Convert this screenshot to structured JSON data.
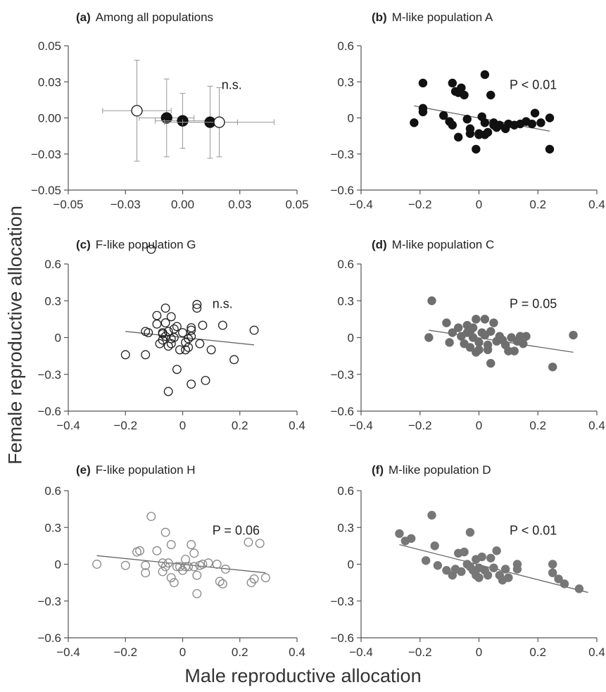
{
  "figure": {
    "ylabel": "Female reproductive allocation",
    "xlabel": "Male reproductive allocation"
  },
  "chart_data": [
    {
      "type": "scatter",
      "panel_letter": "(a)",
      "title": "Among all populations",
      "annotation": "n.s.",
      "xlim": [
        -0.05,
        0.05
      ],
      "ylim": [
        -0.05,
        0.05
      ],
      "xticks": [
        "-0.05",
        "-0.03",
        "0.00",
        "0.03",
        "0.05"
      ],
      "xtick_values": [
        -0.05,
        -0.025,
        0,
        0.025,
        0.05
      ],
      "yticks": [
        "0.05",
        "0.03",
        "0.00",
        "-0.03",
        "-0.05"
      ],
      "ytick_values": [
        0.05,
        0.025,
        0,
        -0.025,
        -0.05
      ],
      "grid": false,
      "points": [
        {
          "x": -0.02,
          "y": 0.005,
          "xerr": 0.015,
          "yerr": 0.035,
          "filled": false
        },
        {
          "x": -0.007,
          "y": 0.0,
          "xerr": 0.012,
          "yerr": 0.027,
          "filled": true
        },
        {
          "x": 0.0,
          "y": -0.002,
          "xerr": 0.012,
          "yerr": 0.019,
          "filled": true
        },
        {
          "x": 0.012,
          "y": -0.003,
          "xerr": 0.012,
          "yerr": 0.025,
          "filled": true
        },
        {
          "x": 0.016,
          "y": -0.003,
          "xerr": 0.024,
          "yerr": 0.024,
          "filled": false
        }
      ]
    },
    {
      "type": "scatter",
      "panel_letter": "(b)",
      "title": "M-like population A",
      "annotation": "P < 0.01",
      "color": "#111111",
      "filled": true,
      "xlim": [
        -0.4,
        0.4
      ],
      "ylim": [
        -0.6,
        0.6
      ],
      "xticks": [
        "-0.4",
        "-0.2",
        "0",
        "0.2",
        "0.4"
      ],
      "xtick_values": [
        -0.4,
        -0.2,
        0,
        0.2,
        0.4
      ],
      "yticks": [
        "0.6",
        "0.3",
        "0",
        "-0.3",
        "-0.6"
      ],
      "ytick_values": [
        0.6,
        0.3,
        0,
        -0.3,
        -0.6
      ],
      "grid": false,
      "trend": {
        "x": [
          -0.22,
          0.24
        ],
        "y": [
          0.1,
          -0.11
        ]
      },
      "points": [
        [
          -0.22,
          -0.04
        ],
        [
          -0.19,
          0.29
        ],
        [
          -0.19,
          0.08
        ],
        [
          -0.19,
          0.05
        ],
        [
          -0.12,
          0.02
        ],
        [
          -0.1,
          -0.03
        ],
        [
          -0.09,
          0.29
        ],
        [
          -0.09,
          -0.06
        ],
        [
          -0.08,
          0.22
        ],
        [
          -0.07,
          0.21
        ],
        [
          -0.07,
          -0.16
        ],
        [
          -0.06,
          0.25
        ],
        [
          -0.05,
          0.19
        ],
        [
          -0.04,
          -0.01
        ],
        [
          -0.03,
          -0.09
        ],
        [
          -0.03,
          -0.13
        ],
        [
          -0.01,
          -0.26
        ],
        [
          0.0,
          -0.14
        ],
        [
          0.0,
          -0.13
        ],
        [
          0.01,
          0.01
        ],
        [
          0.02,
          0.36
        ],
        [
          0.02,
          -0.04
        ],
        [
          0.02,
          -0.14
        ],
        [
          0.03,
          -0.12
        ],
        [
          0.04,
          0.19
        ],
        [
          0.05,
          -0.04
        ],
        [
          0.05,
          -0.06
        ],
        [
          0.06,
          -0.08
        ],
        [
          0.07,
          -0.06
        ],
        [
          0.09,
          -0.09
        ],
        [
          0.1,
          -0.05
        ],
        [
          0.12,
          -0.06
        ],
        [
          0.14,
          -0.05
        ],
        [
          0.16,
          -0.03
        ],
        [
          0.18,
          -0.05
        ],
        [
          0.19,
          0.04
        ],
        [
          0.21,
          -0.04
        ],
        [
          0.24,
          -0.26
        ],
        [
          0.24,
          0.0
        ]
      ]
    },
    {
      "type": "scatter",
      "panel_letter": "(c)",
      "title": "F-like population G",
      "annotation": "n.s.",
      "color": "#222222",
      "filled": false,
      "xlim": [
        -0.4,
        0.4
      ],
      "ylim": [
        -0.6,
        0.6
      ],
      "xticks": [
        "-0.4",
        "-0.2",
        "0",
        "0.2",
        "0.4"
      ],
      "xtick_values": [
        -0.4,
        -0.2,
        0,
        0.2,
        0.4
      ],
      "yticks": [
        "0.6",
        "0.3",
        "0",
        "-0.3",
        "-0.6"
      ],
      "ytick_values": [
        0.6,
        0.3,
        0,
        -0.3,
        -0.6
      ],
      "grid": false,
      "trend": {
        "x": [
          -0.2,
          0.25
        ],
        "y": [
          0.05,
          -0.06
        ]
      },
      "points": [
        [
          -0.2,
          -0.14
        ],
        [
          -0.13,
          -0.14
        ],
        [
          -0.13,
          0.05
        ],
        [
          -0.12,
          0.04
        ],
        [
          -0.11,
          0.72
        ],
        [
          -0.09,
          0.11
        ],
        [
          -0.09,
          0.18
        ],
        [
          -0.08,
          -0.05
        ],
        [
          -0.07,
          0.03
        ],
        [
          -0.07,
          -0.02
        ],
        [
          -0.07,
          0.04
        ],
        [
          -0.06,
          0.24
        ],
        [
          -0.06,
          0.12
        ],
        [
          -0.06,
          0.01
        ],
        [
          -0.05,
          -0.07
        ],
        [
          -0.05,
          -0.44
        ],
        [
          -0.05,
          0.05
        ],
        [
          -0.04,
          0.17
        ],
        [
          -0.04,
          -0.05
        ],
        [
          -0.04,
          -0.01
        ],
        [
          -0.03,
          0.0
        ],
        [
          -0.03,
          0.07
        ],
        [
          -0.02,
          0.09
        ],
        [
          -0.02,
          -0.26
        ],
        [
          -0.01,
          -0.1
        ],
        [
          0.0,
          0.04
        ],
        [
          0.01,
          -0.04
        ],
        [
          0.01,
          -0.1
        ],
        [
          0.02,
          -0.08
        ],
        [
          0.02,
          -0.01
        ],
        [
          0.03,
          0.08
        ],
        [
          0.03,
          0.06
        ],
        [
          0.03,
          0.01
        ],
        [
          0.03,
          -0.38
        ],
        [
          0.05,
          0.24
        ],
        [
          0.05,
          0.27
        ],
        [
          0.06,
          -0.05
        ],
        [
          0.07,
          0.1
        ],
        [
          0.08,
          -0.35
        ],
        [
          0.1,
          -0.1
        ],
        [
          0.14,
          0.1
        ],
        [
          0.18,
          -0.18
        ],
        [
          0.25,
          0.06
        ]
      ]
    },
    {
      "type": "scatter",
      "panel_letter": "(d)",
      "title": "M-like population C",
      "annotation": "P = 0.05",
      "color": "#6e6e6e",
      "filled": true,
      "xlim": [
        -0.4,
        0.4
      ],
      "ylim": [
        -0.6,
        0.6
      ],
      "xticks": [
        "-0.4",
        "-0.2",
        "0",
        "0.2",
        "0.4"
      ],
      "xtick_values": [
        -0.4,
        -0.2,
        0,
        0.2,
        0.4
      ],
      "yticks": [
        "0.6",
        "0.3",
        "0",
        "-0.3",
        "-0.6"
      ],
      "ytick_values": [
        0.6,
        0.3,
        0,
        -0.3,
        -0.6
      ],
      "grid": false,
      "trend": {
        "x": [
          -0.17,
          0.32
        ],
        "y": [
          0.06,
          -0.12
        ]
      },
      "points": [
        [
          -0.17,
          0.0
        ],
        [
          -0.16,
          0.3
        ],
        [
          -0.11,
          0.12
        ],
        [
          -0.1,
          -0.04
        ],
        [
          -0.09,
          0.04
        ],
        [
          -0.07,
          0.08
        ],
        [
          -0.06,
          0.01
        ],
        [
          -0.05,
          -0.05
        ],
        [
          -0.04,
          0.1
        ],
        [
          -0.04,
          0.04
        ],
        [
          -0.03,
          0.05
        ],
        [
          -0.03,
          -0.08
        ],
        [
          -0.02,
          0.08
        ],
        [
          -0.02,
          0.0
        ],
        [
          -0.01,
          0.15
        ],
        [
          -0.01,
          -0.12
        ],
        [
          0.0,
          -0.04
        ],
        [
          0.0,
          -0.1
        ],
        [
          0.01,
          0.04
        ],
        [
          0.02,
          0.15
        ],
        [
          0.02,
          0.02
        ],
        [
          0.03,
          -0.06
        ],
        [
          0.03,
          -0.1
        ],
        [
          0.04,
          -0.21
        ],
        [
          0.04,
          0.05
        ],
        [
          0.05,
          0.12
        ],
        [
          0.06,
          -0.03
        ],
        [
          0.07,
          0.01
        ],
        [
          0.08,
          -0.02
        ],
        [
          0.09,
          -0.06
        ],
        [
          0.1,
          -0.11
        ],
        [
          0.11,
          0.0
        ],
        [
          0.12,
          -0.11
        ],
        [
          0.13,
          -0.03
        ],
        [
          0.14,
          0.01
        ],
        [
          0.15,
          -0.05
        ],
        [
          0.16,
          0.01
        ],
        [
          0.25,
          -0.24
        ],
        [
          0.32,
          0.02
        ]
      ]
    },
    {
      "type": "scatter",
      "panel_letter": "(e)",
      "title": "F-like population H",
      "annotation": "P = 0.06",
      "color": "#888888",
      "filled": false,
      "xlim": [
        -0.4,
        0.4
      ],
      "ylim": [
        -0.6,
        0.6
      ],
      "xticks": [
        "-0.4",
        "-0.2",
        "0",
        "0.2",
        "0.4"
      ],
      "xtick_values": [
        -0.4,
        -0.2,
        0,
        0.2,
        0.4
      ],
      "yticks": [
        "0.6",
        "0.3",
        "0",
        "-0.3",
        "-0.6"
      ],
      "ytick_values": [
        0.6,
        0.3,
        0,
        -0.3,
        -0.6
      ],
      "grid": false,
      "trend": {
        "x": [
          -0.3,
          0.29
        ],
        "y": [
          0.07,
          -0.07
        ]
      },
      "points": [
        [
          -0.3,
          0.0
        ],
        [
          -0.2,
          -0.01
        ],
        [
          -0.16,
          0.1
        ],
        [
          -0.15,
          0.11
        ],
        [
          -0.13,
          -0.07
        ],
        [
          -0.13,
          -0.01
        ],
        [
          -0.11,
          0.39
        ],
        [
          -0.09,
          0.11
        ],
        [
          -0.07,
          -0.06
        ],
        [
          -0.07,
          0.01
        ],
        [
          -0.06,
          -0.02
        ],
        [
          -0.06,
          0.26
        ],
        [
          -0.05,
          0.01
        ],
        [
          -0.04,
          0.16
        ],
        [
          -0.04,
          -0.11
        ],
        [
          -0.03,
          -0.15
        ],
        [
          -0.02,
          -0.02
        ],
        [
          -0.01,
          -0.02
        ],
        [
          0.0,
          -0.05
        ],
        [
          0.01,
          -0.02
        ],
        [
          0.01,
          0.04
        ],
        [
          0.02,
          -0.02
        ],
        [
          0.03,
          0.16
        ],
        [
          0.04,
          0.09
        ],
        [
          0.04,
          -0.02
        ],
        [
          0.05,
          -0.09
        ],
        [
          0.05,
          -0.24
        ],
        [
          0.06,
          -0.01
        ],
        [
          0.07,
          0.0
        ],
        [
          0.09,
          0.01
        ],
        [
          0.12,
          0.0
        ],
        [
          0.13,
          -0.14
        ],
        [
          0.14,
          -0.16
        ],
        [
          0.15,
          -0.04
        ],
        [
          0.23,
          0.18
        ],
        [
          0.24,
          -0.15
        ],
        [
          0.25,
          -0.12
        ],
        [
          0.27,
          0.17
        ],
        [
          0.29,
          -0.11
        ]
      ]
    },
    {
      "type": "scatter",
      "panel_letter": "(f)",
      "title": "M-like population D",
      "annotation": "P < 0.01",
      "color": "#777777",
      "filled": true,
      "xlim": [
        -0.4,
        0.4
      ],
      "ylim": [
        -0.6,
        0.6
      ],
      "xticks": [
        "-0.4",
        "-0.2",
        "0",
        "0.2",
        "0.4"
      ],
      "xtick_values": [
        -0.4,
        -0.2,
        0,
        0.2,
        0.4
      ],
      "yticks": [
        "0.6",
        "0.3",
        "0",
        "-0.3",
        "-0.6"
      ],
      "ytick_values": [
        0.6,
        0.3,
        0,
        -0.3,
        -0.6
      ],
      "grid": false,
      "trend": {
        "x": [
          -0.27,
          0.37
        ],
        "y": [
          0.16,
          -0.23
        ]
      },
      "points": [
        [
          -0.27,
          0.25
        ],
        [
          -0.25,
          0.19
        ],
        [
          -0.23,
          0.21
        ],
        [
          -0.18,
          0.03
        ],
        [
          -0.16,
          0.4
        ],
        [
          -0.15,
          0.15
        ],
        [
          -0.14,
          -0.01
        ],
        [
          -0.11,
          -0.05
        ],
        [
          -0.09,
          -0.09
        ],
        [
          -0.08,
          -0.04
        ],
        [
          -0.07,
          0.09
        ],
        [
          -0.06,
          -0.06
        ],
        [
          -0.05,
          0.1
        ],
        [
          -0.04,
          0.0
        ],
        [
          -0.03,
          0.26
        ],
        [
          -0.03,
          -0.02
        ],
        [
          -0.02,
          -0.05
        ],
        [
          -0.01,
          0.04
        ],
        [
          -0.01,
          -0.09
        ],
        [
          0.0,
          -0.03
        ],
        [
          0.0,
          -0.11
        ],
        [
          0.01,
          0.06
        ],
        [
          0.02,
          -0.05
        ],
        [
          0.03,
          -0.09
        ],
        [
          0.04,
          0.05
        ],
        [
          0.05,
          -0.03
        ],
        [
          0.06,
          0.11
        ],
        [
          0.07,
          -0.09
        ],
        [
          0.08,
          -0.13
        ],
        [
          0.09,
          -0.04
        ],
        [
          0.1,
          -0.11
        ],
        [
          0.13,
          0.0
        ],
        [
          0.13,
          -0.04
        ],
        [
          0.25,
          0.0
        ],
        [
          0.25,
          -0.07
        ],
        [
          0.27,
          -0.12
        ],
        [
          0.29,
          -0.16
        ],
        [
          0.34,
          -0.2
        ]
      ]
    }
  ]
}
